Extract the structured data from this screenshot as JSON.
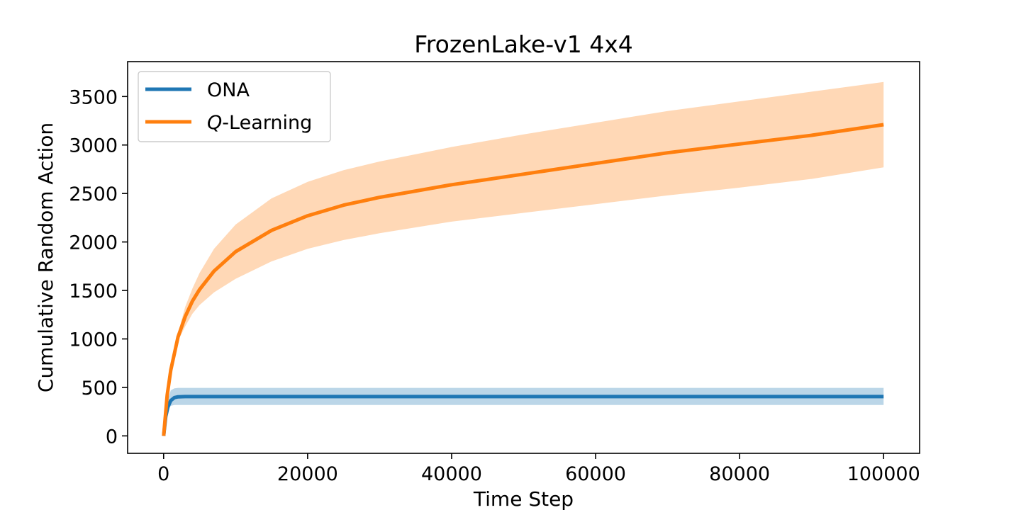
{
  "chart_data": {
    "type": "line",
    "title": "FrozenLake-v1 4x4",
    "xlabel": "Time Step",
    "ylabel": "Cumulative Random Action",
    "xlim": [
      -5000,
      105000
    ],
    "ylim": [
      -180,
      3860
    ],
    "xticks": [
      0,
      20000,
      40000,
      60000,
      80000,
      100000
    ],
    "xtick_labels": [
      "0",
      "20000",
      "40000",
      "60000",
      "80000",
      "100000"
    ],
    "yticks": [
      0,
      500,
      1000,
      1500,
      2000,
      2500,
      3000,
      3500
    ],
    "ytick_labels": [
      "0",
      "500",
      "1000",
      "1500",
      "2000",
      "2500",
      "3000",
      "3500"
    ],
    "grid": false,
    "legend_position": "top-left",
    "series": [
      {
        "name": "ONA",
        "color": "#1f77b4",
        "x": [
          0,
          300,
          600,
          1000,
          1500,
          2000,
          3000,
          5000,
          10000,
          20000,
          40000,
          60000,
          80000,
          100000
        ],
        "y": [
          0,
          200,
          300,
          365,
          395,
          403,
          405,
          405,
          405,
          405,
          405,
          405,
          405,
          405
        ],
        "lower": [
          0,
          170,
          260,
          310,
          318,
          318,
          318,
          318,
          318,
          318,
          318,
          318,
          318,
          318
        ],
        "upper": [
          0,
          260,
          380,
          470,
          490,
          495,
          495,
          495,
          495,
          495,
          495,
          495,
          495,
          495
        ]
      },
      {
        "name": "Q-Learning",
        "name_italic": "Q",
        "name_rest": "-Learning",
        "color": "#ff7f0e",
        "x": [
          0,
          500,
          1000,
          2000,
          3000,
          4000,
          5000,
          7000,
          10000,
          15000,
          20000,
          25000,
          30000,
          40000,
          50000,
          60000,
          70000,
          80000,
          90000,
          100000
        ],
        "y": [
          0,
          420,
          680,
          1020,
          1230,
          1390,
          1510,
          1700,
          1900,
          2120,
          2270,
          2380,
          2460,
          2590,
          2700,
          2810,
          2920,
          3010,
          3100,
          3210
        ],
        "lower": [
          0,
          420,
          680,
          980,
          1130,
          1260,
          1350,
          1480,
          1620,
          1800,
          1930,
          2020,
          2090,
          2210,
          2300,
          2390,
          2480,
          2560,
          2650,
          2770
        ],
        "upper": [
          0,
          420,
          680,
          1060,
          1330,
          1520,
          1680,
          1930,
          2180,
          2450,
          2620,
          2740,
          2830,
          2980,
          3110,
          3230,
          3350,
          3450,
          3550,
          3650
        ]
      }
    ]
  }
}
